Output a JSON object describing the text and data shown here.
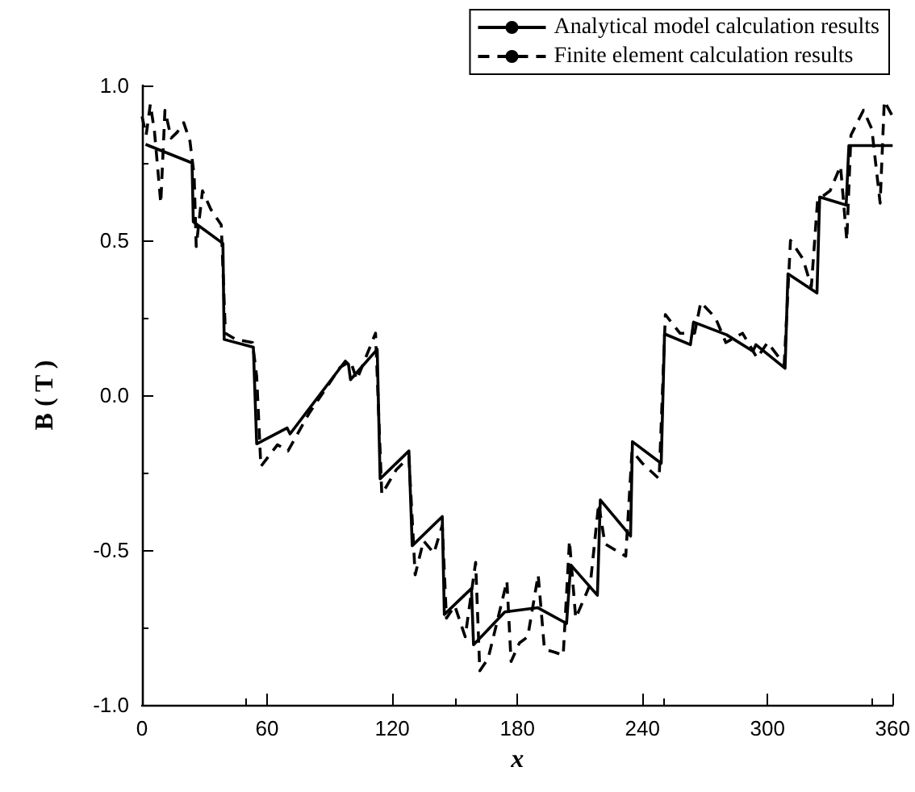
{
  "chart_data": {
    "type": "line",
    "xlabel": "x",
    "ylabel": "B ( T )",
    "xlim": [
      0,
      360
    ],
    "xticks": [
      0,
      60,
      120,
      180,
      240,
      300,
      360
    ],
    "ylim": [
      -1.0,
      1.0
    ],
    "yticks": [
      {
        "value": -1.0,
        "label": "-1.0"
      },
      {
        "value": -0.5,
        "label": "-0.5"
      },
      {
        "value": 0,
        "label": "0.0"
      },
      {
        "value": 0.5,
        "label": "0.5"
      },
      {
        "value": 1.0,
        "label": "1.0"
      }
    ],
    "grid": false,
    "legend": "top right",
    "series": [
      {
        "name": "Analytical model calculation results",
        "color": "#000000",
        "line_style": "solid",
        "x": [
          1.7,
          24,
          24.6,
          38.8,
          39.4,
          53.4,
          55,
          69.6,
          71,
          97.5,
          99,
          100,
          112.8,
          114.2,
          128,
          129.6,
          144,
          145,
          158,
          159,
          174,
          189.7,
          203.6,
          205.6,
          218.4,
          219.8,
          234.3,
          235.2,
          249,
          250.6,
          263,
          264.5,
          280.4,
          293,
          294.4,
          308.4,
          309.8,
          323.7,
          325,
          337.7,
          339,
          360
        ],
        "values": [
          0.81,
          0.75,
          0.56,
          0.49,
          0.18,
          0.155,
          -0.157,
          -0.106,
          -0.125,
          0.11,
          0.1,
          0.05,
          0.148,
          -0.27,
          -0.18,
          -0.486,
          -0.392,
          -0.708,
          -0.624,
          -0.806,
          -0.7,
          -0.686,
          -0.737,
          -0.548,
          -0.646,
          -0.338,
          -0.455,
          -0.15,
          -0.22,
          0.198,
          0.163,
          0.236,
          0.195,
          0.142,
          0.163,
          0.087,
          0.392,
          0.33,
          0.64,
          0.614,
          0.806,
          0.806
        ]
      },
      {
        "name": "Finite element calculation results",
        "color": "#000000",
        "line_style": "dashed",
        "x": [
          0,
          2,
          4,
          6,
          9,
          11,
          14,
          17,
          20,
          23,
          25,
          26,
          29,
          33,
          38,
          40,
          45,
          53,
          55,
          57,
          65,
          70,
          80,
          95,
          100,
          103,
          112,
          115,
          122,
          128,
          131,
          135,
          140,
          144,
          146,
          150,
          155,
          160,
          162,
          166,
          170,
          175,
          177,
          181,
          185,
          190,
          193,
          198,
          202,
          205,
          208,
          215,
          219,
          222,
          232,
          235,
          240,
          248,
          251,
          258,
          265,
          268,
          275,
          280,
          288,
          295,
          300,
          308,
          311,
          317,
          321,
          324,
          330,
          335,
          338,
          340,
          346,
          350,
          354,
          356,
          360
        ],
        "values": [
          0.9,
          0.84,
          0.94,
          0.85,
          0.62,
          0.92,
          0.83,
          0.85,
          0.88,
          0.82,
          0.71,
          0.48,
          0.66,
          0.6,
          0.55,
          0.2,
          0.18,
          0.17,
          0.06,
          -0.23,
          -0.16,
          -0.18,
          -0.06,
          0.09,
          0.11,
          0.05,
          0.2,
          -0.32,
          -0.24,
          -0.2,
          -0.58,
          -0.47,
          -0.51,
          -0.42,
          -0.72,
          -0.68,
          -0.78,
          -0.54,
          -0.89,
          -0.85,
          -0.74,
          -0.6,
          -0.86,
          -0.8,
          -0.78,
          -0.58,
          -0.82,
          -0.83,
          -0.84,
          -0.47,
          -0.72,
          -0.61,
          -0.35,
          -0.48,
          -0.52,
          -0.18,
          -0.22,
          -0.27,
          0.26,
          0.2,
          0.2,
          0.3,
          0.25,
          0.17,
          0.2,
          0.12,
          0.17,
          0.1,
          0.5,
          0.44,
          0.35,
          0.63,
          0.66,
          0.74,
          0.5,
          0.84,
          0.92,
          0.86,
          0.62,
          0.95,
          0.9
        ]
      }
    ]
  }
}
